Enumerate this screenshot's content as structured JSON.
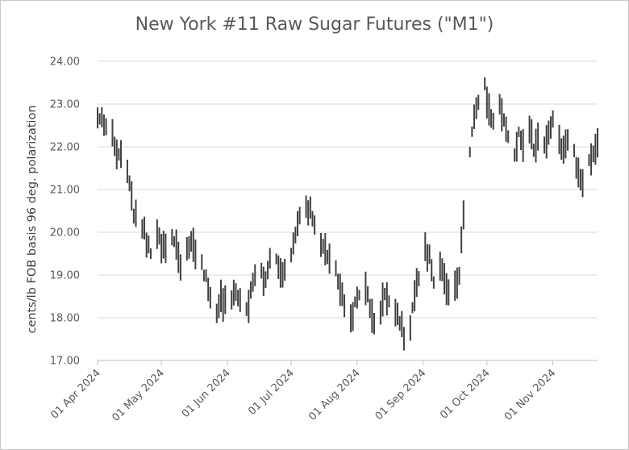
{
  "chart_data": {
    "type": "line",
    "subtype": "ohlc-daily-bars",
    "title": "New York #11 Raw Sugar Futures (\"M1\")",
    "xlabel": "",
    "ylabel": "cents/lb FOB basis 96 deg. polarization",
    "ylim": [
      17.0,
      24.0
    ],
    "y_ticks": [
      "17.00",
      "18.00",
      "19.00",
      "20.00",
      "21.00",
      "22.00",
      "23.00",
      "24.00"
    ],
    "x_ticks": [
      "01 Apr 2024",
      "01 May 2024",
      "01 Jun 2024",
      "01 Jul 2024",
      "01 Aug 2024",
      "01 Sep 2024",
      "01 Oct 2024",
      "01 Nov 2024"
    ],
    "x_range": [
      "2024-04-01",
      "2024-11-22"
    ],
    "grid": "horizontal",
    "legend": "none",
    "colors": {
      "series": "#404040",
      "grid": "#d9d9d9",
      "axis": "#bfbfbf",
      "text": "#595959"
    },
    "series": [
      {
        "keypoints": [
          [
            "2024-04-01",
            22.8
          ],
          [
            "2024-04-04",
            22.5
          ],
          [
            "2024-04-08",
            22.4
          ],
          [
            "2024-04-10",
            21.8
          ],
          [
            "2024-04-12",
            21.9
          ],
          [
            "2024-04-15",
            21.4
          ],
          [
            "2024-04-17",
            20.9
          ],
          [
            "2024-04-18",
            20.5
          ],
          [
            "2024-04-22",
            20.2
          ],
          [
            "2024-04-24",
            19.8
          ],
          [
            "2024-04-26",
            19.4
          ],
          [
            "2024-04-29",
            19.9
          ],
          [
            "2024-05-01",
            19.7
          ],
          [
            "2024-05-03",
            19.5
          ],
          [
            "2024-05-06",
            19.9
          ],
          [
            "2024-05-08",
            19.6
          ],
          [
            "2024-05-10",
            19.3
          ],
          [
            "2024-05-13",
            19.5
          ],
          [
            "2024-05-15",
            19.7
          ],
          [
            "2024-05-17",
            19.5
          ],
          [
            "2024-05-20",
            19.3
          ],
          [
            "2024-05-22",
            18.9
          ],
          [
            "2024-05-24",
            18.5
          ],
          [
            "2024-05-27",
            18.2
          ],
          [
            "2024-05-29",
            18.5
          ],
          [
            "2024-05-31",
            18.3
          ],
          [
            "2024-06-03",
            18.4
          ],
          [
            "2024-06-05",
            18.6
          ],
          [
            "2024-06-07",
            18.3
          ],
          [
            "2024-06-10",
            18.1
          ],
          [
            "2024-06-12",
            18.6
          ],
          [
            "2024-06-14",
            18.9
          ],
          [
            "2024-06-17",
            19.1
          ],
          [
            "2024-06-19",
            18.8
          ],
          [
            "2024-06-21",
            19.3
          ],
          [
            "2024-06-24",
            19.5
          ],
          [
            "2024-06-26",
            19.1
          ],
          [
            "2024-06-28",
            19.0
          ],
          [
            "2024-07-01",
            19.4
          ],
          [
            "2024-07-03",
            20.0
          ],
          [
            "2024-07-05",
            20.4
          ],
          [
            "2024-07-08",
            20.6
          ],
          [
            "2024-07-10",
            20.5
          ],
          [
            "2024-07-12",
            20.1
          ],
          [
            "2024-07-15",
            19.8
          ],
          [
            "2024-07-17",
            19.6
          ],
          [
            "2024-07-19",
            19.3
          ],
          [
            "2024-07-22",
            19.1
          ],
          [
            "2024-07-24",
            18.7
          ],
          [
            "2024-07-26",
            18.3
          ],
          [
            "2024-07-29",
            18.0
          ],
          [
            "2024-07-31",
            18.3
          ],
          [
            "2024-08-02",
            18.5
          ],
          [
            "2024-08-05",
            18.6
          ],
          [
            "2024-08-07",
            18.3
          ],
          [
            "2024-08-09",
            17.8
          ],
          [
            "2024-08-12",
            18.2
          ],
          [
            "2024-08-14",
            18.6
          ],
          [
            "2024-08-16",
            18.3
          ],
          [
            "2024-08-19",
            18.1
          ],
          [
            "2024-08-21",
            17.9
          ],
          [
            "2024-08-23",
            17.6
          ],
          [
            "2024-08-26",
            17.8
          ],
          [
            "2024-08-28",
            18.5
          ],
          [
            "2024-08-30",
            19.0
          ],
          [
            "2024-09-02",
            19.6
          ],
          [
            "2024-09-04",
            19.4
          ],
          [
            "2024-09-06",
            18.9
          ],
          [
            "2024-09-09",
            19.2
          ],
          [
            "2024-09-11",
            18.8
          ],
          [
            "2024-09-13",
            18.6
          ],
          [
            "2024-09-16",
            18.7
          ],
          [
            "2024-09-18",
            19.1
          ],
          [
            "2024-09-20",
            20.3
          ],
          [
            "2024-09-23",
            22.0
          ],
          [
            "2024-09-25",
            22.7
          ],
          [
            "2024-09-27",
            23.1
          ],
          [
            "2024-09-30",
            23.4
          ],
          [
            "2024-10-02",
            22.9
          ],
          [
            "2024-10-04",
            22.5
          ],
          [
            "2024-10-07",
            23.0
          ],
          [
            "2024-10-09",
            22.6
          ],
          [
            "2024-10-11",
            22.2
          ],
          [
            "2024-10-14",
            21.9
          ],
          [
            "2024-10-16",
            22.3
          ],
          [
            "2024-10-18",
            22.0
          ],
          [
            "2024-10-21",
            22.5
          ],
          [
            "2024-10-23",
            21.9
          ],
          [
            "2024-10-25",
            22.2
          ],
          [
            "2024-10-28",
            22.0
          ],
          [
            "2024-10-30",
            22.3
          ],
          [
            "2024-11-01",
            22.6
          ],
          [
            "2024-11-04",
            22.2
          ],
          [
            "2024-11-06",
            21.9
          ],
          [
            "2024-11-08",
            22.2
          ],
          [
            "2024-11-11",
            21.8
          ],
          [
            "2024-11-13",
            21.4
          ],
          [
            "2024-11-15",
            21.1
          ],
          [
            "2024-11-18",
            21.6
          ],
          [
            "2024-11-20",
            21.9
          ],
          [
            "2024-11-22",
            22.2
          ]
        ]
      }
    ]
  }
}
